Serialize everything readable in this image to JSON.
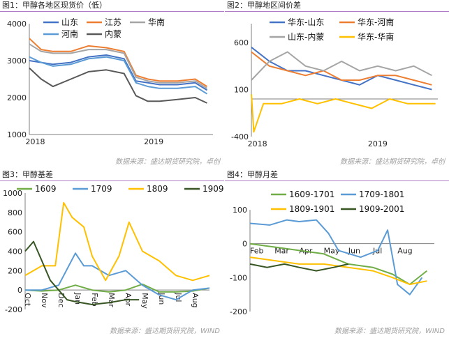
{
  "panels": [
    {
      "title": "图1：甲醇各地区现货价（低）",
      "source": "数据来源：盛达期货研究院，卓创"
    },
    {
      "title": "图2：甲醇地区间价差",
      "source": "数据来源：盛达期货研究院，卓创"
    },
    {
      "title": "图3：甲醇基差",
      "source": "数据来源：盛达期货研究院，WIND"
    },
    {
      "title": "图4：甲醇月差",
      "source": "数据来源：盛达期货研究院，WIND"
    }
  ],
  "colors": {
    "blue": "#4472c4",
    "orange": "#ed7d31",
    "gray": "#a5a5a5",
    "lightblue": "#5b9bd5",
    "darkgray": "#595959",
    "yellow": "#ffc000",
    "green": "#70ad47",
    "darkgreen": "#375623"
  },
  "chart_data": [
    {
      "type": "line",
      "ylim": [
        1000,
        4000
      ],
      "yticks": [
        1000,
        2000,
        3000,
        4000
      ],
      "xlim": [
        2017.95,
        2019.5
      ],
      "xticks": [
        {
          "label": "2018",
          "x": 2018.0
        },
        {
          "label": "2019",
          "x": 2019.0
        }
      ],
      "grid": false,
      "legend": "top",
      "series": [
        {
          "name": "山东",
          "color": "blue",
          "x": [
            2017.95,
            2018.05,
            2018.15,
            2018.3,
            2018.45,
            2018.6,
            2018.75,
            2018.85,
            2018.95,
            2019.05,
            2019.2,
            2019.35,
            2019.45
          ],
          "values": [
            3000,
            2950,
            2900,
            2950,
            3100,
            3150,
            3050,
            2450,
            2400,
            2350,
            2350,
            2400,
            2200
          ]
        },
        {
          "name": "江苏",
          "color": "orange",
          "x": [
            2017.95,
            2018.05,
            2018.15,
            2018.3,
            2018.45,
            2018.6,
            2018.75,
            2018.85,
            2018.95,
            2019.05,
            2019.2,
            2019.35,
            2019.45
          ],
          "values": [
            3600,
            3300,
            3250,
            3250,
            3400,
            3350,
            3250,
            2600,
            2500,
            2450,
            2450,
            2500,
            2300
          ]
        },
        {
          "name": "华南",
          "color": "gray",
          "x": [
            2017.95,
            2018.05,
            2018.15,
            2018.3,
            2018.45,
            2018.6,
            2018.75,
            2018.85,
            2018.95,
            2019.05,
            2019.2,
            2019.35,
            2019.45
          ],
          "values": [
            3450,
            3250,
            3200,
            3200,
            3300,
            3300,
            3200,
            2550,
            2450,
            2400,
            2400,
            2450,
            2250
          ]
        },
        {
          "name": "河南",
          "color": "lightblue",
          "x": [
            2017.95,
            2018.05,
            2018.15,
            2018.3,
            2018.45,
            2018.6,
            2018.75,
            2018.85,
            2018.95,
            2019.05,
            2019.2,
            2019.35,
            2019.45
          ],
          "values": [
            3100,
            2950,
            2850,
            2900,
            3050,
            3100,
            3000,
            2400,
            2300,
            2250,
            2250,
            2300,
            2100
          ]
        },
        {
          "name": "内蒙",
          "color": "darkgray",
          "x": [
            2017.95,
            2018.05,
            2018.15,
            2018.3,
            2018.45,
            2018.6,
            2018.75,
            2018.85,
            2018.95,
            2019.05,
            2019.2,
            2019.35,
            2019.45
          ],
          "values": [
            2800,
            2500,
            2300,
            2500,
            2700,
            2750,
            2650,
            2050,
            1900,
            1900,
            1950,
            2000,
            1850
          ]
        }
      ]
    },
    {
      "type": "line",
      "ylim": [
        -400,
        800
      ],
      "yticks": [
        -400,
        100,
        600
      ],
      "xlim": [
        2017.95,
        2019.5
      ],
      "xticks": [
        {
          "label": "2018",
          "x": 2018.0
        },
        {
          "label": "2019",
          "x": 2019.0
        }
      ],
      "grid": false,
      "legend": "top",
      "series": [
        {
          "name": "华东-山东",
          "color": "blue",
          "x": [
            2017.95,
            2018.1,
            2018.25,
            2018.4,
            2018.55,
            2018.7,
            2018.85,
            2019.0,
            2019.15,
            2019.3,
            2019.45
          ],
          "values": [
            550,
            400,
            300,
            300,
            250,
            200,
            150,
            250,
            200,
            150,
            100
          ]
        },
        {
          "name": "华东-河南",
          "color": "orange",
          "x": [
            2017.95,
            2018.1,
            2018.25,
            2018.4,
            2018.55,
            2018.7,
            2018.85,
            2019.0,
            2019.15,
            2019.3,
            2019.45
          ],
          "values": [
            500,
            350,
            300,
            250,
            300,
            200,
            200,
            250,
            250,
            200,
            150
          ]
        },
        {
          "name": "山东-内蒙",
          "color": "gray",
          "x": [
            2017.95,
            2018.1,
            2018.25,
            2018.4,
            2018.55,
            2018.7,
            2018.85,
            2019.0,
            2019.15,
            2019.3,
            2019.45
          ],
          "values": [
            200,
            400,
            500,
            350,
            300,
            400,
            300,
            350,
            300,
            350,
            250
          ]
        },
        {
          "name": "华东-华南",
          "color": "yellow",
          "x": [
            2017.95,
            2017.97,
            2018.05,
            2018.2,
            2018.35,
            2018.5,
            2018.65,
            2018.8,
            2018.95,
            2019.1,
            2019.25,
            2019.4,
            2019.48
          ],
          "values": [
            50,
            -350,
            -50,
            -50,
            0,
            -50,
            0,
            -50,
            -100,
            0,
            -50,
            -50,
            -50
          ]
        }
      ]
    },
    {
      "type": "line",
      "ylim": [
        -200,
        1000
      ],
      "yticks": [
        -200,
        0,
        200,
        400,
        600,
        800,
        1000
      ],
      "xlim": [
        0,
        11
      ],
      "xticks": [
        {
          "label": "Oct",
          "x": 0
        },
        {
          "label": "Nov",
          "x": 1
        },
        {
          "label": "Dec",
          "x": 2
        },
        {
          "label": "Jan",
          "x": 3
        },
        {
          "label": "Feb",
          "x": 4
        },
        {
          "label": "Mar",
          "x": 5
        },
        {
          "label": "Apr",
          "x": 6
        },
        {
          "label": "May",
          "x": 7
        },
        {
          "label": "Jun",
          "x": 8
        },
        {
          "label": "Jul",
          "x": 9
        },
        {
          "label": "Aug",
          "x": 10
        }
      ],
      "grid": false,
      "legend": "top",
      "series": [
        {
          "name": "1609",
          "color": "green",
          "x": [
            0,
            1,
            2,
            3,
            4,
            5,
            6,
            7,
            8,
            9,
            10,
            11
          ],
          "values": [
            0,
            -10,
            0,
            50,
            0,
            -20,
            0,
            60,
            -20,
            -20,
            -10,
            20
          ]
        },
        {
          "name": "1709",
          "color": "lightblue",
          "x": [
            0,
            1,
            2,
            3,
            3.5,
            4,
            5,
            6,
            7,
            8,
            9,
            10,
            11
          ],
          "values": [
            0,
            0,
            50,
            380,
            250,
            250,
            150,
            200,
            50,
            -50,
            -100,
            0,
            20
          ]
        },
        {
          "name": "1809",
          "color": "yellow",
          "x": [
            0,
            1,
            1.8,
            2.3,
            2.8,
            3.5,
            4,
            4.8,
            5.6,
            6.2,
            7,
            8,
            9,
            10,
            11
          ],
          "values": [
            150,
            250,
            250,
            900,
            750,
            650,
            350,
            100,
            350,
            700,
            400,
            300,
            150,
            100,
            150
          ]
        },
        {
          "name": "1909",
          "color": "darkgreen",
          "x": [
            0,
            0.5,
            1,
            1.5,
            2,
            2.5,
            3,
            4,
            5,
            6,
            6.8
          ],
          "values": [
            400,
            500,
            300,
            100,
            0,
            -100,
            -120,
            -150,
            -130,
            -100,
            -100
          ]
        }
      ]
    },
    {
      "type": "line",
      "ylim": [
        -200,
        100
      ],
      "yticks": [
        -200,
        -100,
        0,
        100
      ],
      "xlim": [
        0,
        7.5
      ],
      "xticks": [
        {
          "label": "Feb",
          "x": 0
        },
        {
          "label": "Mar",
          "x": 1
        },
        {
          "label": "Apr",
          "x": 2
        },
        {
          "label": "May",
          "x": 3
        },
        {
          "label": "Jun",
          "x": 4
        },
        {
          "label": "Jul",
          "x": 5
        },
        {
          "label": "Aug",
          "x": 6
        }
      ],
      "grid": false,
      "legend": "top",
      "series": [
        {
          "name": "1609-1701",
          "color": "green",
          "x": [
            0,
            1,
            2,
            3,
            4,
            5,
            5.8,
            6.5,
            7.2
          ],
          "values": [
            0,
            -10,
            -20,
            -30,
            -60,
            -70,
            -90,
            -120,
            -80
          ]
        },
        {
          "name": "1709-1801",
          "color": "lightblue",
          "x": [
            0,
            0.8,
            1.5,
            2,
            2.7,
            3.2,
            3.6,
            4.5,
            5.2,
            5.6,
            6,
            6.5,
            7
          ],
          "values": [
            60,
            55,
            70,
            65,
            70,
            30,
            -20,
            -40,
            -20,
            40,
            -120,
            -150,
            -100
          ]
        },
        {
          "name": "1809-1901",
          "color": "yellow",
          "x": [
            0,
            1,
            2,
            3,
            4,
            5,
            5.8,
            6.5,
            7.2
          ],
          "values": [
            -40,
            -50,
            -60,
            -60,
            -70,
            -80,
            -100,
            -120,
            -110
          ]
        },
        {
          "name": "1909-2001",
          "color": "darkgreen",
          "x": [
            0,
            0.7,
            1.4,
            2,
            2.7,
            3.4,
            4
          ],
          "values": [
            -60,
            -70,
            -60,
            -70,
            -80,
            -70,
            -60
          ]
        }
      ]
    }
  ]
}
